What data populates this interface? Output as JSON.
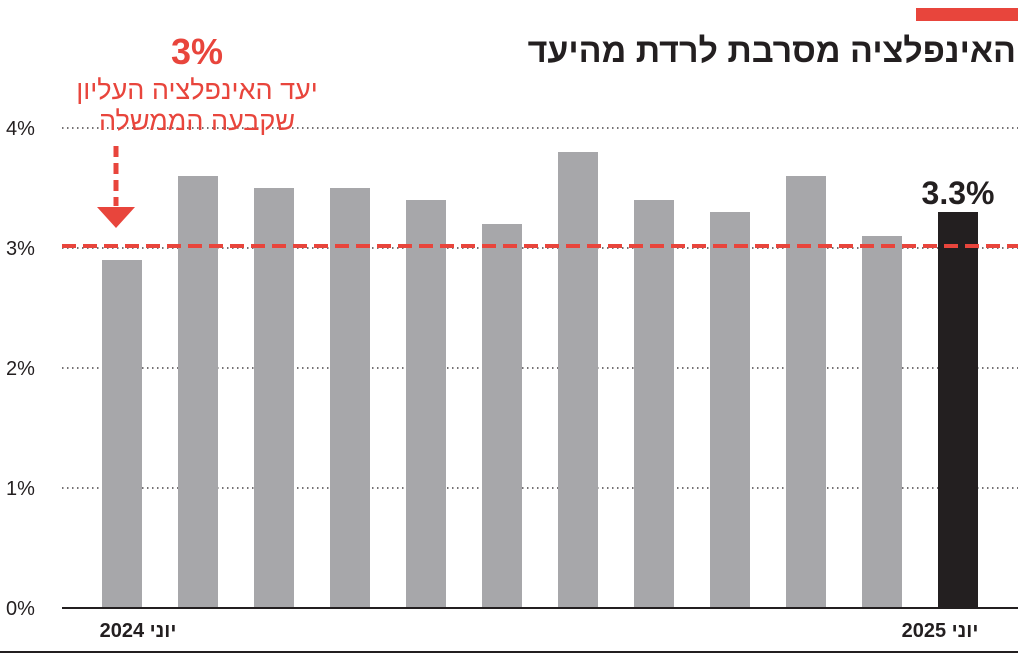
{
  "title": "האינפלציה מסרבת לרדת מהיעד",
  "colors": {
    "accent": "#e8453c",
    "bar": "#a7a7aa",
    "highlight_bar": "#231f20",
    "text": "#231f20"
  },
  "target_annotation": {
    "value_label": "3%",
    "line1": "יעד האינפלציה העליון",
    "line2": "שקבעה הממשלה"
  },
  "chart_data": {
    "type": "bar",
    "title": "האינפלציה מסרבת לרדת מהיעד",
    "values": [
      2.9,
      3.6,
      3.5,
      3.5,
      3.4,
      3.2,
      3.8,
      3.4,
      3.3,
      3.6,
      3.1,
      3.3
    ],
    "highlight_index": 11,
    "highlight_label": "3.3%",
    "first_label": "יוני 2024",
    "last_label": "יוני 2025",
    "ylim": [
      0,
      4
    ],
    "yticks": [
      "0%",
      "1%",
      "2%",
      "3%",
      "4%"
    ],
    "target_value": 3.0,
    "grid": true
  }
}
